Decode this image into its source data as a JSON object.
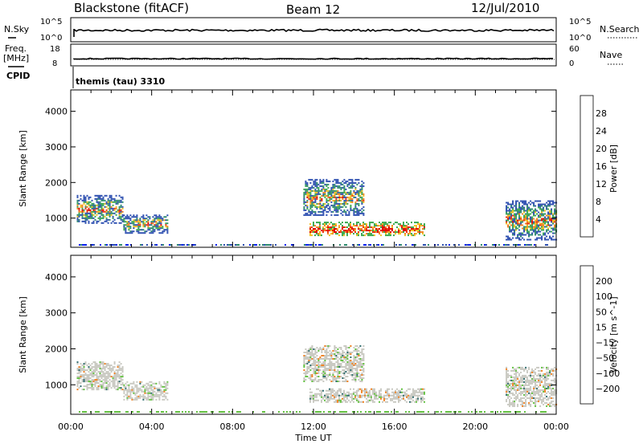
{
  "header": {
    "station": "Blackstone (fitACF)",
    "beam": "Beam 12",
    "date": "12/Jul/2010"
  },
  "summary": {
    "nsky_label": "N.Sky",
    "nsky_ticks": [
      "10^5",
      "10^0"
    ],
    "nsearch_label": "N.Search",
    "nsearch_ticks": [
      "10^5",
      "10^0"
    ],
    "freq_label": "Freq.",
    "freq_unit": "[MHz]",
    "freq_ticks": [
      "18",
      "8"
    ],
    "nave_label": "Nave",
    "nave_ticks": [
      "60",
      "0"
    ],
    "cpid_label": "CPID",
    "cpid_value": "themis (tau) 3310"
  },
  "chart_data": [
    {
      "type": "heatmap",
      "name": "power",
      "ylabel": "Slant Range [km]",
      "yticks": [
        "1000",
        "2000",
        "3000",
        "4000"
      ],
      "ylim": [
        180,
        4600
      ],
      "xlabel": "Time UT",
      "xticks": [
        "00:00",
        "04:00",
        "08:00",
        "12:00",
        "16:00",
        "20:00",
        "00:00"
      ],
      "xlim_hours": [
        0,
        24
      ],
      "colorbar": {
        "label": "Power [dB]",
        "ticks": [
          "4",
          "8",
          "12",
          "16",
          "20",
          "24",
          "28"
        ],
        "colors": [
          "#0b22f0",
          "#2d4fb0",
          "#2e8b6e",
          "#3aa94f",
          "#f0c020",
          "#f08020",
          "#e83010",
          "#e00000"
        ]
      },
      "echo_regions": [
        {
          "t_start": 0.3,
          "t_end": 2.6,
          "r_min": 850,
          "r_max": 1650
        },
        {
          "t_start": 2.6,
          "t_end": 4.8,
          "r_min": 600,
          "r_max": 1100
        },
        {
          "t_start": 11.5,
          "t_end": 14.5,
          "r_min": 1100,
          "r_max": 2100
        },
        {
          "t_start": 11.8,
          "t_end": 17.5,
          "r_min": 500,
          "r_max": 900
        },
        {
          "t_start": 21.5,
          "t_end": 24,
          "r_min": 400,
          "r_max": 1500
        }
      ]
    },
    {
      "type": "heatmap",
      "name": "velocity",
      "ylabel": "Slant Range [km]",
      "yticks": [
        "1000",
        "2000",
        "3000",
        "4000"
      ],
      "ylim": [
        180,
        4600
      ],
      "xlabel": "Time UT",
      "xticks": [
        "00:00",
        "04:00",
        "08:00",
        "12:00",
        "16:00",
        "20:00",
        "00:00"
      ],
      "xlim_hours": [
        0,
        24
      ],
      "colorbar": {
        "label": "Velocity [m s^-1]",
        "ticks": [
          "200",
          "100",
          "50",
          "15",
          "−15",
          "−50",
          "−100",
          "−200"
        ],
        "colors": [
          "#2030c0",
          "#2e6b6e",
          "#3a9a50",
          "#62c040",
          "#c8c8c0",
          "#f0c020",
          "#f08020",
          "#e83010",
          "#e00000"
        ]
      },
      "echo_regions": [
        {
          "t_start": 0.3,
          "t_end": 2.6,
          "r_min": 850,
          "r_max": 1650
        },
        {
          "t_start": 2.6,
          "t_end": 4.8,
          "r_min": 600,
          "r_max": 1100
        },
        {
          "t_start": 11.5,
          "t_end": 14.5,
          "r_min": 1100,
          "r_max": 2100
        },
        {
          "t_start": 11.8,
          "t_end": 17.5,
          "r_min": 500,
          "r_max": 900
        },
        {
          "t_start": 21.5,
          "t_end": 24,
          "r_min": 400,
          "r_max": 1500
        }
      ]
    }
  ]
}
